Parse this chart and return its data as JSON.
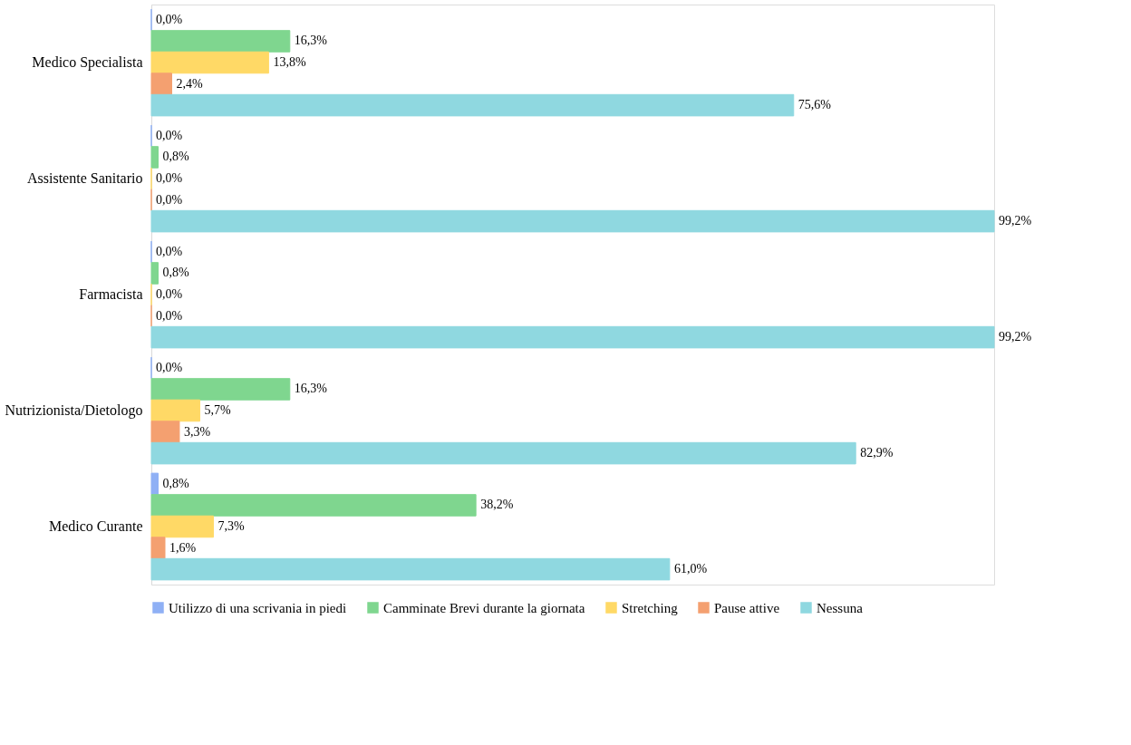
{
  "chart_data": {
    "type": "bar",
    "orientation": "horizontal",
    "categories": [
      "Medico Specialista",
      "Assistente Sanitario",
      "Farmacista",
      "Nutrizionista/Dietologo",
      "Medico Curante"
    ],
    "series": [
      {
        "name": "Utilizzo di una scrivania in piedi",
        "color": "#8fb0f5",
        "values": [
          0.0,
          0.0,
          0.0,
          0.0,
          0.8
        ],
        "value_labels": [
          "0,0%",
          "0,0%",
          "0,0%",
          "0,0%",
          "0,8%"
        ]
      },
      {
        "name": "Camminate Brevi durante la giornata",
        "color": "#7fd68f",
        "values": [
          16.3,
          0.8,
          0.8,
          16.3,
          38.2
        ],
        "value_labels": [
          "16,3%",
          "0,8%",
          "0,8%",
          "16,3%",
          "38,2%"
        ]
      },
      {
        "name": "Stretching",
        "color": "#ffd966",
        "values": [
          13.8,
          0.0,
          0.0,
          5.7,
          7.3
        ],
        "value_labels": [
          "13,8%",
          "0,0%",
          "0,0%",
          "5,7%",
          "7,3%"
        ]
      },
      {
        "name": "Pause attive",
        "color": "#f4a070",
        "values": [
          2.4,
          0.0,
          0.0,
          3.3,
          1.6
        ],
        "value_labels": [
          "2,4%",
          "0,0%",
          "0,0%",
          "3,3%",
          "1,6%"
        ]
      },
      {
        "name": "Nessuna",
        "color": "#8fd8e0",
        "values": [
          75.6,
          99.2,
          99.2,
          82.9,
          61.0
        ],
        "value_labels": [
          "75,6%",
          "99,2%",
          "99,2%",
          "82,9%",
          "61,0%"
        ]
      }
    ],
    "legend": "bottom",
    "grid": false
  }
}
